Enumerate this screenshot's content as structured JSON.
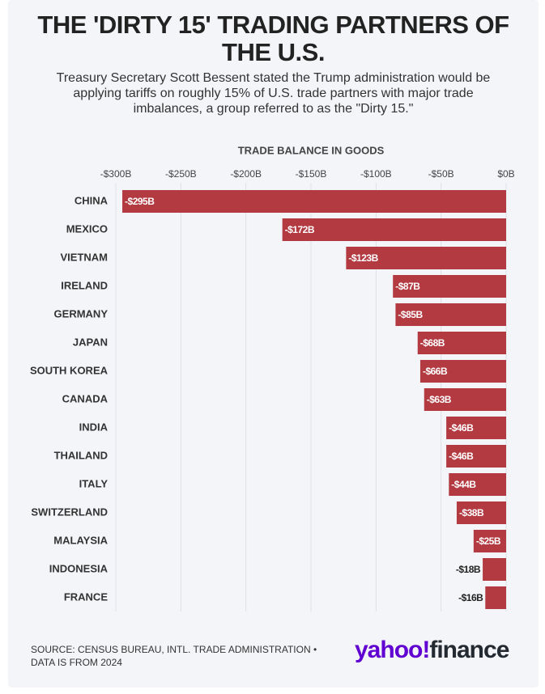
{
  "chart_data": {
    "type": "bar",
    "orientation": "horizontal",
    "title": "THE 'DIRTY 15' TRADING PARTNERS OF THE U.S.",
    "subtitle": "Treasury Secretary Scott Bessent stated the Trump administration would be applying tariffs on roughly 15% of U.S. trade partners with major trade imbalances, a group referred to as the \"Dirty 15.\"",
    "x_label": "TRADE BALANCE IN GOODS",
    "categories": [
      "CHINA",
      "MEXICO",
      "VIETNAM",
      "IRELAND",
      "GERMANY",
      "JAPAN",
      "SOUTH KOREA",
      "CANADA",
      "INDIA",
      "THAILAND",
      "ITALY",
      "SWITZERLAND",
      "MALAYSIA",
      "INDONESIA",
      "FRANCE"
    ],
    "values": [
      -295,
      -172,
      -123,
      -87,
      -85,
      -68,
      -66,
      -63,
      -46,
      -46,
      -44,
      -38,
      -25,
      -18,
      -16
    ],
    "value_labels": [
      "-$295B",
      "-$172B",
      "-$123B",
      "-$87B",
      "-$85B",
      "-$68B",
      "-$66B",
      "-$63B",
      "-$46B",
      "-$46B",
      "-$44B",
      "-$38B",
      "-$25B",
      "-$18B",
      "-$16B"
    ],
    "color": "#b23a40",
    "xlim": [
      -300,
      0
    ],
    "xticks": [
      {
        "value": -300,
        "label": "-$300B"
      },
      {
        "value": -250,
        "label": "-$250B"
      },
      {
        "value": -200,
        "label": "-$200B"
      },
      {
        "value": -150,
        "label": "-$150B"
      },
      {
        "value": -100,
        "label": "-$100B"
      },
      {
        "value": -50,
        "label": "-$50B"
      },
      {
        "value": 0,
        "label": "$0B"
      }
    ],
    "grid": true,
    "source": "SOURCE: CENSUS BUREAU, INTL. TRADE ADMINISTRATION • DATA IS FROM 2024",
    "logo": {
      "brand": "yahoo!",
      "product": "finance"
    }
  }
}
